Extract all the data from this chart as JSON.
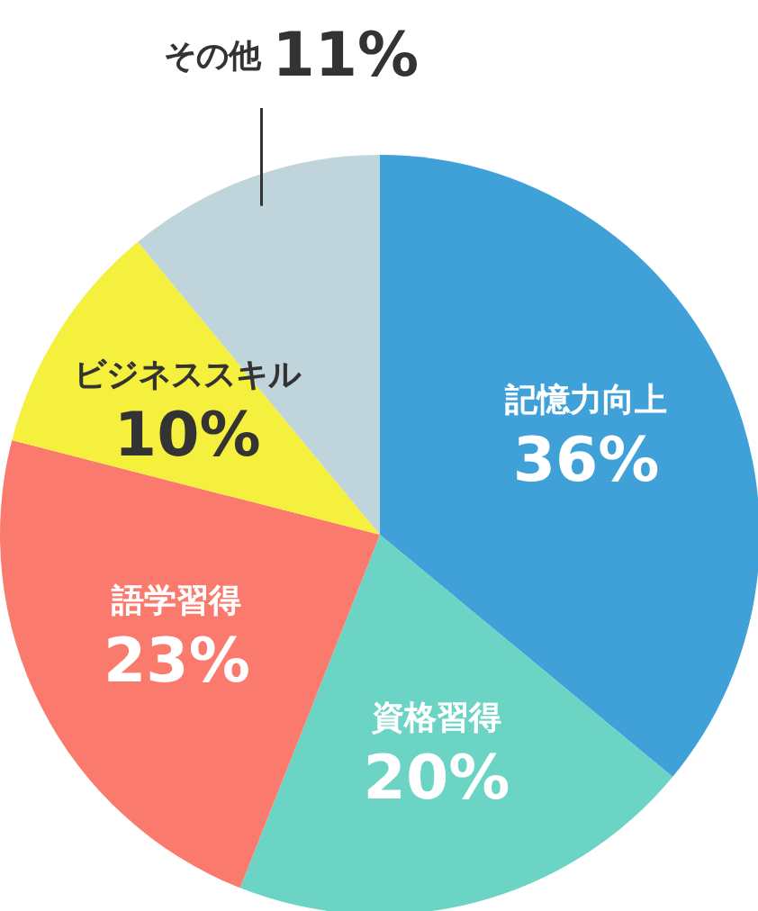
{
  "chart_data": {
    "type": "pie",
    "categories": [
      "記憶力向上",
      "資格習得",
      "語学習得",
      "ビジネススキル",
      "その他"
    ],
    "values": [
      36,
      20,
      23,
      10,
      11
    ],
    "value_labels": [
      "36%",
      "20%",
      "23%",
      "10%",
      "11%"
    ],
    "colors": [
      "#40a1d9",
      "#6bd4c4",
      "#fa7b6e",
      "#f5ef3d",
      "#bfd5db"
    ]
  }
}
